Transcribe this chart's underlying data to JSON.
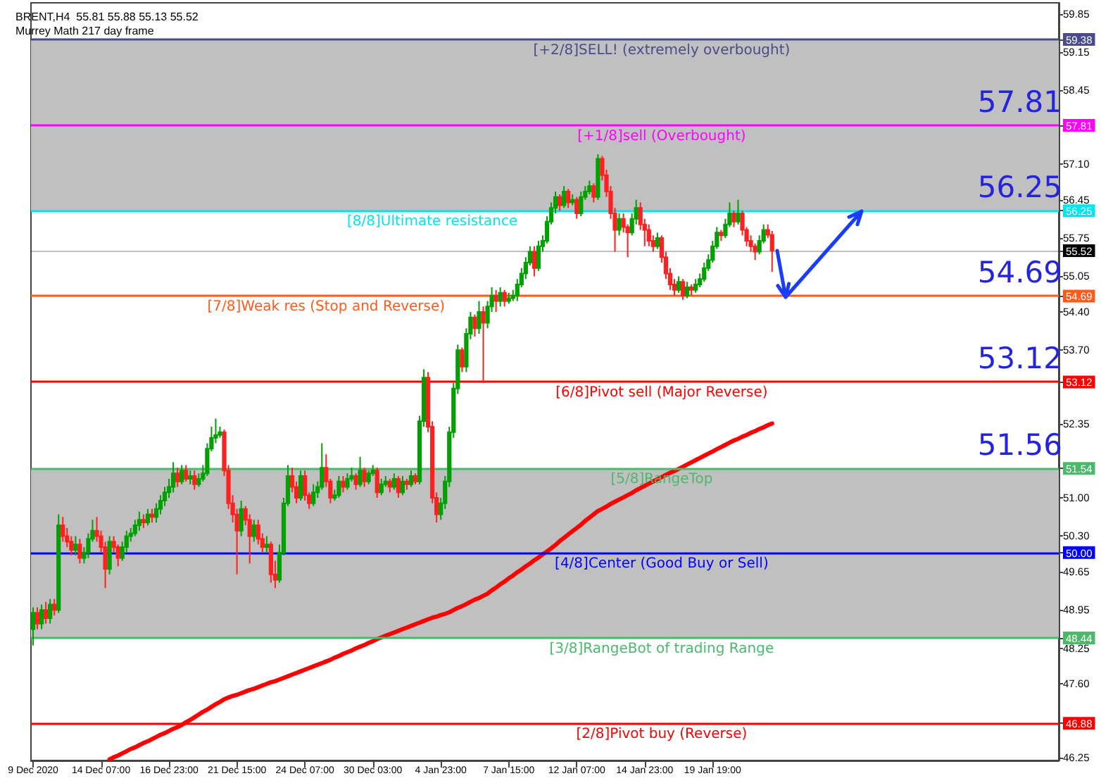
{
  "chart_data": {
    "type": "candlestick",
    "title": "BRENT,H4  55.81 55.88 55.13 55.52",
    "subtitle": "Murrey Math 217 day frame",
    "categories": [
      "9 Dec 2020",
      null,
      null,
      null,
      null,
      null,
      null,
      null,
      null,
      null,
      null,
      null,
      null,
      null,
      null,
      null,
      "14 Dec 07:00",
      null,
      null,
      null,
      null,
      null,
      null,
      null,
      null,
      null,
      null,
      null,
      null,
      null,
      null,
      null,
      "16 Dec 23:00",
      null,
      null,
      null,
      null,
      null,
      null,
      null,
      null,
      null,
      null,
      null,
      null,
      null,
      null,
      null,
      "21 Dec 15:00",
      null,
      null,
      null,
      null,
      null,
      null,
      null,
      null,
      null,
      null,
      null,
      null,
      null,
      null,
      null,
      "24 Dec 07:00",
      null,
      null,
      null,
      null,
      null,
      null,
      null,
      null,
      null,
      null,
      null,
      null,
      null,
      null,
      null,
      "30 Dec 03:00",
      null,
      null,
      null,
      null,
      null,
      null,
      null,
      null,
      null,
      null,
      null,
      null,
      null,
      null,
      null,
      "4 Jan 23:00",
      null,
      null,
      null,
      null,
      null,
      null,
      null,
      null,
      null,
      null,
      null,
      null,
      null,
      null,
      null,
      "7 Jan 15:00",
      null,
      null,
      null,
      null,
      null,
      null,
      null,
      null,
      null,
      null,
      null,
      null,
      null,
      null,
      null,
      "12 Jan 07:00",
      null,
      null,
      null,
      null,
      null,
      null,
      null,
      null,
      null,
      null,
      null,
      null,
      null,
      null,
      null,
      "14 Jan 23:00",
      null,
      null,
      null,
      null,
      null,
      null,
      null,
      null,
      null,
      null,
      null,
      null,
      null,
      null,
      null,
      "19 Jan 19:00",
      null,
      null,
      null,
      null,
      null,
      null,
      null,
      null,
      null,
      null,
      null,
      null,
      null,
      null,
      null,
      null,
      null,
      null,
      null,
      null,
      null,
      null,
      null,
      null,
      null,
      null,
      null,
      null,
      null,
      null,
      null,
      null,
      null,
      null,
      null,
      null,
      null,
      null,
      null,
      null,
      null,
      null,
      null,
      null,
      null,
      null,
      null,
      null,
      null,
      null,
      null,
      null,
      null,
      null,
      null,
      null,
      null,
      null,
      null,
      null,
      null,
      null,
      null,
      null,
      null,
      null,
      null,
      null,
      null,
      null,
      null,
      null,
      null,
      null,
      null,
      null,
      null,
      null,
      null,
      null,
      null
    ],
    "series": [
      {
        "type": "candlestick",
        "ohlc": [
          [
            48.6,
            49.0,
            48.3,
            48.9
          ],
          [
            48.9,
            49.0,
            48.6,
            48.7
          ],
          [
            48.7,
            49.05,
            48.6,
            48.95
          ],
          [
            48.95,
            49.1,
            48.7,
            48.8
          ],
          [
            48.8,
            49.15,
            48.7,
            49.05
          ],
          [
            49.05,
            49.15,
            48.85,
            48.95
          ],
          [
            48.95,
            50.7,
            48.9,
            50.5
          ],
          [
            50.5,
            50.65,
            50.2,
            50.3
          ],
          [
            50.3,
            50.45,
            50.1,
            50.2
          ],
          [
            50.2,
            50.3,
            49.95,
            50.05
          ],
          [
            50.05,
            50.3,
            49.95,
            50.15
          ],
          [
            50.15,
            50.25,
            49.8,
            49.9
          ],
          [
            49.9,
            50.1,
            49.8,
            50.0
          ],
          [
            50.0,
            50.35,
            49.9,
            50.25
          ],
          [
            50.25,
            50.6,
            50.2,
            50.4
          ],
          [
            50.4,
            50.65,
            50.2,
            50.3
          ],
          [
            50.3,
            50.4,
            50.0,
            50.1
          ],
          [
            50.1,
            50.2,
            49.35,
            49.7
          ],
          [
            49.7,
            50.3,
            49.6,
            50.2
          ],
          [
            50.2,
            50.3,
            50.0,
            50.1
          ],
          [
            50.1,
            50.15,
            49.75,
            49.9
          ],
          [
            49.9,
            50.2,
            49.85,
            50.1
          ],
          [
            50.1,
            50.4,
            50.0,
            50.3
          ],
          [
            50.3,
            50.45,
            50.2,
            50.35
          ],
          [
            50.35,
            50.6,
            50.3,
            50.5
          ],
          [
            50.5,
            50.75,
            50.4,
            50.6
          ],
          [
            50.6,
            50.7,
            50.45,
            50.55
          ],
          [
            50.55,
            50.8,
            50.5,
            50.7
          ],
          [
            50.7,
            50.8,
            50.55,
            50.65
          ],
          [
            50.65,
            50.9,
            50.55,
            50.8
          ],
          [
            50.8,
            51.05,
            50.7,
            50.95
          ],
          [
            50.95,
            51.2,
            50.85,
            51.1
          ],
          [
            51.1,
            51.35,
            51.0,
            51.2
          ],
          [
            51.2,
            51.65,
            51.1,
            51.45
          ],
          [
            51.45,
            51.55,
            51.2,
            51.3
          ],
          [
            51.3,
            51.6,
            51.25,
            51.5
          ],
          [
            51.5,
            51.6,
            51.3,
            51.35
          ],
          [
            51.35,
            51.5,
            51.25,
            51.4
          ],
          [
            51.4,
            51.5,
            51.15,
            51.25
          ],
          [
            51.25,
            51.45,
            51.2,
            51.35
          ],
          [
            51.35,
            51.6,
            51.3,
            51.45
          ],
          [
            51.45,
            52.0,
            51.4,
            51.9
          ],
          [
            51.9,
            52.3,
            51.85,
            52.1
          ],
          [
            52.1,
            52.45,
            52.0,
            52.15
          ],
          [
            52.15,
            52.3,
            52.1,
            52.2
          ],
          [
            52.2,
            52.25,
            51.4,
            51.5
          ],
          [
            51.5,
            51.6,
            50.8,
            50.9
          ],
          [
            50.9,
            51.05,
            50.55,
            50.7
          ],
          [
            50.7,
            50.8,
            49.6,
            50.4
          ],
          [
            50.4,
            50.95,
            50.3,
            50.8
          ],
          [
            50.8,
            50.85,
            50.5,
            50.6
          ],
          [
            50.6,
            50.7,
            49.8,
            50.3
          ],
          [
            50.3,
            50.6,
            50.2,
            50.5
          ],
          [
            50.5,
            50.6,
            50.15,
            50.25
          ],
          [
            50.25,
            50.35,
            50.0,
            50.1
          ],
          [
            50.1,
            50.3,
            50.0,
            50.15
          ],
          [
            50.15,
            50.2,
            49.45,
            49.6
          ],
          [
            49.6,
            49.85,
            49.35,
            49.5
          ],
          [
            49.5,
            50.15,
            49.45,
            50.0
          ],
          [
            50.0,
            51.0,
            49.95,
            50.9
          ],
          [
            50.9,
            51.6,
            50.85,
            51.4
          ],
          [
            51.4,
            51.55,
            51.1,
            51.2
          ],
          [
            51.2,
            51.3,
            50.9,
            51.0
          ],
          [
            51.0,
            51.5,
            50.95,
            51.4
          ],
          [
            51.4,
            51.5,
            50.95,
            51.05
          ],
          [
            51.05,
            51.1,
            50.8,
            50.9
          ],
          [
            50.9,
            51.25,
            50.85,
            51.1
          ],
          [
            51.1,
            51.3,
            51.0,
            51.2
          ],
          [
            51.2,
            52.0,
            51.15,
            51.55
          ],
          [
            51.55,
            51.8,
            51.2,
            51.3
          ],
          [
            51.3,
            51.35,
            50.9,
            51.0
          ],
          [
            51.0,
            51.15,
            50.95,
            51.05
          ],
          [
            51.05,
            51.4,
            51.0,
            51.3
          ],
          [
            51.3,
            51.4,
            51.1,
            51.2
          ],
          [
            51.2,
            51.45,
            51.15,
            51.35
          ],
          [
            51.35,
            51.55,
            51.3,
            51.4
          ],
          [
            51.4,
            51.45,
            51.15,
            51.25
          ],
          [
            51.25,
            51.75,
            51.2,
            51.5
          ],
          [
            51.5,
            51.55,
            51.2,
            51.3
          ],
          [
            51.3,
            51.5,
            51.25,
            51.45
          ],
          [
            51.45,
            51.6,
            51.4,
            51.5
          ],
          [
            51.5,
            51.55,
            51.0,
            51.1
          ],
          [
            51.1,
            51.35,
            51.05,
            51.25
          ],
          [
            51.25,
            51.4,
            51.2,
            51.3
          ],
          [
            51.3,
            51.35,
            51.1,
            51.2
          ],
          [
            51.2,
            51.45,
            51.15,
            51.35
          ],
          [
            51.35,
            51.4,
            51.0,
            51.1
          ],
          [
            51.1,
            51.4,
            51.05,
            51.3
          ],
          [
            51.3,
            51.35,
            51.15,
            51.25
          ],
          [
            51.25,
            51.5,
            51.2,
            51.4
          ],
          [
            51.4,
            51.45,
            51.25,
            51.3
          ],
          [
            51.3,
            52.5,
            51.25,
            52.4
          ],
          [
            52.4,
            53.35,
            52.3,
            53.2
          ],
          [
            53.2,
            53.3,
            52.2,
            52.3
          ],
          [
            52.3,
            52.4,
            50.9,
            51.0
          ],
          [
            51.0,
            51.1,
            50.55,
            50.7
          ],
          [
            50.7,
            51.0,
            50.6,
            50.9
          ],
          [
            50.9,
            51.4,
            50.8,
            51.3
          ],
          [
            51.3,
            52.3,
            51.2,
            52.2
          ],
          [
            52.2,
            53.1,
            52.1,
            53.0
          ],
          [
            53.0,
            53.8,
            52.9,
            53.7
          ],
          [
            53.7,
            53.75,
            53.3,
            53.4
          ],
          [
            53.4,
            54.1,
            53.3,
            54.0
          ],
          [
            54.0,
            54.4,
            53.9,
            54.3
          ],
          [
            54.3,
            54.35,
            53.95,
            54.1
          ],
          [
            54.1,
            54.6,
            54.0,
            54.4
          ],
          [
            54.4,
            54.5,
            53.1,
            54.2
          ],
          [
            54.2,
            54.6,
            54.1,
            54.5
          ],
          [
            54.5,
            54.85,
            54.4,
            54.7
          ],
          [
            54.7,
            54.8,
            54.4,
            54.6
          ],
          [
            54.6,
            54.85,
            54.5,
            54.75
          ],
          [
            54.75,
            54.8,
            54.5,
            54.6
          ],
          [
            54.6,
            54.75,
            54.55,
            54.65
          ],
          [
            54.65,
            54.8,
            54.6,
            54.7
          ],
          [
            54.7,
            55.0,
            54.6,
            54.9
          ],
          [
            54.9,
            55.2,
            54.85,
            55.1
          ],
          [
            55.1,
            55.4,
            55.0,
            55.3
          ],
          [
            55.3,
            55.6,
            55.25,
            55.5
          ],
          [
            55.5,
            55.6,
            55.05,
            55.2
          ],
          [
            55.2,
            55.7,
            55.15,
            55.6
          ],
          [
            55.6,
            55.8,
            55.5,
            55.7
          ],
          [
            55.7,
            56.15,
            55.65,
            56.05
          ],
          [
            56.05,
            56.4,
            56.0,
            56.3
          ],
          [
            56.3,
            56.6,
            56.2,
            56.5
          ],
          [
            56.5,
            56.55,
            56.25,
            56.35
          ],
          [
            56.35,
            56.7,
            56.3,
            56.6
          ],
          [
            56.6,
            56.65,
            56.3,
            56.4
          ],
          [
            56.4,
            56.55,
            56.35,
            56.45
          ],
          [
            56.45,
            56.5,
            56.1,
            56.2
          ],
          [
            56.2,
            56.6,
            56.15,
            56.5
          ],
          [
            56.5,
            56.7,
            56.45,
            56.6
          ],
          [
            56.6,
            56.8,
            56.55,
            56.7
          ],
          [
            56.7,
            56.75,
            56.4,
            56.5
          ],
          [
            56.5,
            57.28,
            56.45,
            57.2
          ],
          [
            57.2,
            57.25,
            56.8,
            56.9
          ],
          [
            56.9,
            57.0,
            56.5,
            56.6
          ],
          [
            56.6,
            56.7,
            56.1,
            56.2
          ],
          [
            56.2,
            56.3,
            55.5,
            55.9
          ],
          [
            55.9,
            56.2,
            55.8,
            56.1
          ],
          [
            56.1,
            56.2,
            55.85,
            55.95
          ],
          [
            55.95,
            56.0,
            55.4,
            55.85
          ],
          [
            55.85,
            56.2,
            55.8,
            56.1
          ],
          [
            56.1,
            56.45,
            56.0,
            56.3
          ],
          [
            56.3,
            56.4,
            55.9,
            56.0
          ],
          [
            56.0,
            56.1,
            55.6,
            55.9
          ],
          [
            55.9,
            56.0,
            55.6,
            55.7
          ],
          [
            55.7,
            55.8,
            55.5,
            55.6
          ],
          [
            55.6,
            55.85,
            55.55,
            55.75
          ],
          [
            55.75,
            55.8,
            55.3,
            55.4
          ],
          [
            55.4,
            55.5,
            55.0,
            55.1
          ],
          [
            55.1,
            55.2,
            54.8,
            54.9
          ],
          [
            54.9,
            55.0,
            54.7,
            54.8
          ],
          [
            54.8,
            55.05,
            54.75,
            54.95
          ],
          [
            54.95,
            55.0,
            54.62,
            54.7
          ],
          [
            54.7,
            54.95,
            54.65,
            54.85
          ],
          [
            54.85,
            54.9,
            54.7,
            54.8
          ],
          [
            54.8,
            55.0,
            54.75,
            54.9
          ],
          [
            54.9,
            55.1,
            54.85,
            55.0
          ],
          [
            55.0,
            55.3,
            54.95,
            55.2
          ],
          [
            55.2,
            55.45,
            55.15,
            55.35
          ],
          [
            55.35,
            55.7,
            55.3,
            55.6
          ],
          [
            55.6,
            55.95,
            55.55,
            55.85
          ],
          [
            55.85,
            55.9,
            55.7,
            55.8
          ],
          [
            55.8,
            56.1,
            55.75,
            56.0
          ],
          [
            56.0,
            56.4,
            55.95,
            56.2
          ],
          [
            56.2,
            56.25,
            55.95,
            56.05
          ],
          [
            56.05,
            56.45,
            56.0,
            56.2
          ],
          [
            56.2,
            56.25,
            55.8,
            55.9
          ],
          [
            55.9,
            55.95,
            55.6,
            55.7
          ],
          [
            55.7,
            55.8,
            55.5,
            55.6
          ],
          [
            55.6,
            55.65,
            55.35,
            55.5
          ],
          [
            55.5,
            55.8,
            55.45,
            55.7
          ],
          [
            55.7,
            56.0,
            55.65,
            55.9
          ],
          [
            55.9,
            56.0,
            55.75,
            55.81
          ],
          [
            55.81,
            55.88,
            55.13,
            55.52
          ],
          null,
          null,
          null,
          null,
          null,
          null,
          null,
          null,
          null,
          null,
          null,
          null,
          null,
          null,
          null,
          null,
          null,
          null,
          null,
          null,
          null,
          null,
          null,
          null,
          null,
          null,
          null,
          null,
          null,
          null,
          null,
          null,
          null,
          null,
          null,
          null,
          null,
          null,
          null,
          null,
          null,
          null,
          null,
          null,
          null,
          null,
          null,
          null,
          null,
          null,
          null,
          null,
          null,
          null,
          null,
          null,
          null,
          null,
          null,
          null,
          null,
          null,
          null,
          null,
          null,
          null,
          null
        ]
      },
      {
        "type": "line",
        "color": "#ff0000",
        "values": [
          null,
          null,
          null,
          null,
          null,
          null,
          null,
          null,
          null,
          null,
          null,
          null,
          null,
          null,
          null,
          null,
          null,
          null,
          46.22,
          46.26,
          46.29,
          46.33,
          46.37,
          46.41,
          46.44,
          46.48,
          46.52,
          46.55,
          46.59,
          46.63,
          46.67,
          46.7,
          46.74,
          46.78,
          46.81,
          46.85,
          46.9,
          46.94,
          46.99,
          47.04,
          47.09,
          47.13,
          47.18,
          47.23,
          47.27,
          47.32,
          47.35,
          47.38,
          47.4,
          47.43,
          47.46,
          47.49,
          47.51,
          47.54,
          47.57,
          47.6,
          47.63,
          47.65,
          47.68,
          47.71,
          47.74,
          47.77,
          47.8,
          47.83,
          47.86,
          47.89,
          47.92,
          47.95,
          47.98,
          48.01,
          48.04,
          48.08,
          48.11,
          48.15,
          48.18,
          48.21,
          48.25,
          48.28,
          48.31,
          48.35,
          48.38,
          48.42,
          48.45,
          48.48,
          48.51,
          48.54,
          48.57,
          48.6,
          48.63,
          48.66,
          48.69,
          48.72,
          48.75,
          48.78,
          48.81,
          48.83,
          48.86,
          48.88,
          48.91,
          48.95,
          48.99,
          49.02,
          49.06,
          49.1,
          49.14,
          49.17,
          49.21,
          49.25,
          49.31,
          49.36,
          49.42,
          49.47,
          49.53,
          49.58,
          49.64,
          49.69,
          49.75,
          49.8,
          49.86,
          49.91,
          49.97,
          50.02,
          50.08,
          50.14,
          50.21,
          50.27,
          50.33,
          50.39,
          50.45,
          50.51,
          50.58,
          50.64,
          50.7,
          50.76,
          50.8,
          50.84,
          50.89,
          50.93,
          50.97,
          51.01,
          51.05,
          51.09,
          51.14,
          51.18,
          51.22,
          51.26,
          51.3,
          51.34,
          51.38,
          51.42,
          51.46,
          51.49,
          51.53,
          51.57,
          51.61,
          51.65,
          51.69,
          51.73,
          51.77,
          51.81,
          51.85,
          51.89,
          51.93,
          51.97,
          52.01,
          52.05,
          52.08,
          52.12,
          52.15,
          52.19,
          52.22,
          52.26,
          52.29,
          52.33,
          52.36,
          null,
          null,
          null,
          null,
          null,
          null,
          null,
          null,
          null,
          null,
          null,
          null,
          null,
          null,
          null,
          null,
          null,
          null,
          null,
          null,
          null,
          null,
          null,
          null,
          null,
          null,
          null,
          null,
          null,
          null,
          null,
          null,
          null,
          null,
          null,
          null,
          null,
          null,
          null,
          null,
          null,
          null,
          null,
          null,
          null,
          null,
          null,
          null,
          null,
          null,
          null,
          null,
          null,
          null,
          null,
          null,
          null,
          null,
          null,
          null,
          null,
          null,
          null,
          null,
          null,
          null,
          null
        ]
      }
    ],
    "ylim": [
      46.2,
      60.05
    ],
    "yticks": [
      {
        "value": 46.25,
        "label": "46.25"
      },
      {
        "value": 47.6,
        "label": "47.60"
      },
      48.25,
      48.95,
      49.65,
      {
        "value": 50.3,
        "label": "50.30"
      },
      {
        "value": 51.0,
        "label": "51.00"
      },
      52.35,
      {
        "value": 53.7,
        "label": "53.70"
      },
      {
        "value": 54.4,
        "label": "54.40"
      },
      55.05,
      55.75,
      56.45,
      {
        "value": 57.1,
        "label": "57.10"
      },
      58.45,
      59.15,
      59.85,
      59.38,
      57.81,
      56.25,
      55.52,
      54.69,
      53.12,
      51.54,
      {
        "value": 50.0,
        "label": "50.00"
      },
      48.44,
      46.88
    ],
    "grid": false,
    "bands": [
      {
        "axis": "y",
        "from": 56.25,
        "to": 59.38,
        "color": "#c0c0c0"
      },
      {
        "axis": "y",
        "from": 48.44,
        "to": 51.54,
        "color": "#c0c0c0"
      }
    ],
    "ref_lines": [
      {
        "axis": "y",
        "value": 59.38,
        "label": "[+2/8]SELL! (extremely overbought)",
        "color": "#4b4b8c"
      },
      {
        "axis": "y",
        "value": 57.81,
        "label": "[+1/8]sell (Overbought)",
        "color": "#ff00ff"
      },
      {
        "axis": "y",
        "value": 56.25,
        "label": "[8/8]Ultimate resistance",
        "color": "#00e5ee"
      },
      {
        "axis": "y",
        "value": 55.52,
        "label": null,
        "color": "#000000"
      },
      {
        "axis": "y",
        "value": 54.69,
        "label": "[7/8]Weak res (Stop and Reverse)",
        "color": "#ff5a1a"
      },
      {
        "axis": "y",
        "value": 53.12,
        "label": "[6/8]Pivot sell (Major Reverse)",
        "color": "#ff0000"
      },
      {
        "axis": "y",
        "value": 51.54,
        "label": "[5/8]RangeTop",
        "color": "#4cb86c"
      },
      {
        "axis": "y",
        "value": 50.0,
        "label": "[4/8]Center (Good Buy or Sell)",
        "color": "#0000ff"
      },
      {
        "axis": "y",
        "value": 48.44,
        "label": "[3/8]RangeBot of trading Range",
        "color": "#4cb86c"
      },
      {
        "axis": "y",
        "value": 46.88,
        "label": "[2/8]Pivot buy (Reverse)",
        "color": "#ff0000"
      }
    ],
    "annotations": [
      {
        "text": "57.81",
        "y": 57.81
      },
      {
        "text": "56.25",
        "y": 56.25
      },
      {
        "text": "54.69",
        "y": 54.69
      },
      {
        "text": "53.12",
        "y": 53.12
      },
      {
        "text": "51.56",
        "y": 51.54
      }
    ]
  }
}
